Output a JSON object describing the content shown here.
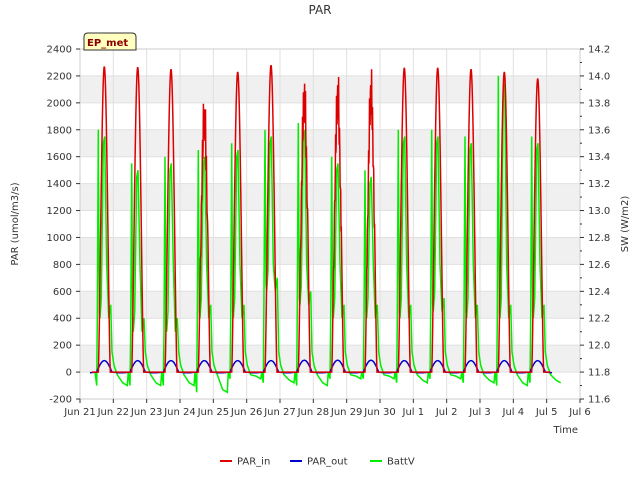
{
  "chart_data": {
    "type": "line",
    "title": "PAR",
    "badge": "EP_met",
    "xlabel": "Time",
    "ylabel_left": "PAR (umol/m3/s)",
    "ylabel_right": "SW (W/m2)",
    "ylim_left": [
      -200,
      2400
    ],
    "ylim_right": [
      11.6,
      14.2
    ],
    "xlim": [
      0,
      15
    ],
    "yticks_left": [
      -200,
      0,
      200,
      400,
      600,
      800,
      1000,
      1200,
      1400,
      1600,
      1800,
      2000,
      2200,
      2400
    ],
    "yticks_right": [
      "11.6",
      "11.8",
      "12.0",
      "12.2",
      "12.4",
      "12.6",
      "12.8",
      "13.0",
      "13.2",
      "13.4",
      "13.6",
      "13.8",
      "14.0",
      "14.2"
    ],
    "xticks": [
      {
        "pos": 0,
        "label": "Jun 21"
      },
      {
        "pos": 1,
        "label": "Jun 22"
      },
      {
        "pos": 2,
        "label": "Jun 23"
      },
      {
        "pos": 3,
        "label": "Jun 24"
      },
      {
        "pos": 4,
        "label": "Jun 25"
      },
      {
        "pos": 5,
        "label": "Jun 26"
      },
      {
        "pos": 6,
        "label": "Jun 27"
      },
      {
        "pos": 7,
        "label": "Jun 28"
      },
      {
        "pos": 8,
        "label": "Jun 29"
      },
      {
        "pos": 9,
        "label": "Jun 30"
      },
      {
        "pos": 10,
        "label": "Jul 1"
      },
      {
        "pos": 11,
        "label": "Jul 2"
      },
      {
        "pos": 12,
        "label": "Jul 3"
      },
      {
        "pos": 13,
        "label": "Jul 4"
      },
      {
        "pos": 14,
        "label": "Jul 5"
      },
      {
        "pos": 15,
        "label": "Jul 6"
      }
    ],
    "grid": true,
    "legend_position": "bottom-center",
    "series": [
      {
        "name": "PAR_in",
        "color": "#dd0000",
        "axis": "left",
        "daily_peaks": [
          2270,
          2265,
          2250,
          2120,
          2230,
          2280,
          2270,
          2280,
          2320,
          2260,
          2260,
          2250,
          2230,
          2180
        ]
      },
      {
        "name": "PAR_out",
        "color": "#0000cc",
        "axis": "left",
        "daily_peaks": [
          85,
          85,
          85,
          85,
          85,
          85,
          88,
          88,
          88,
          85,
          85,
          85,
          85,
          85
        ]
      },
      {
        "name": "BattV",
        "color": "#00ee00",
        "axis": "right",
        "daily_peaks": [
          13.6,
          13.35,
          13.4,
          13.45,
          13.5,
          13.6,
          13.65,
          13.4,
          13.3,
          13.6,
          13.6,
          13.55,
          14.0,
          13.55
        ],
        "daily_troughs": [
          11.7,
          11.7,
          11.7,
          11.65,
          11.75,
          11.72,
          11.7,
          11.75,
          11.75,
          11.72,
          11.75,
          11.72,
          11.7,
          11.72
        ],
        "daily_morning": [
          12.2,
          12.1,
          12.1,
          12.2,
          12.2,
          12.4,
          12.3,
          12.2,
          12.2,
          12.2,
          12.25,
          12.2,
          12.2,
          12.2
        ]
      }
    ]
  }
}
